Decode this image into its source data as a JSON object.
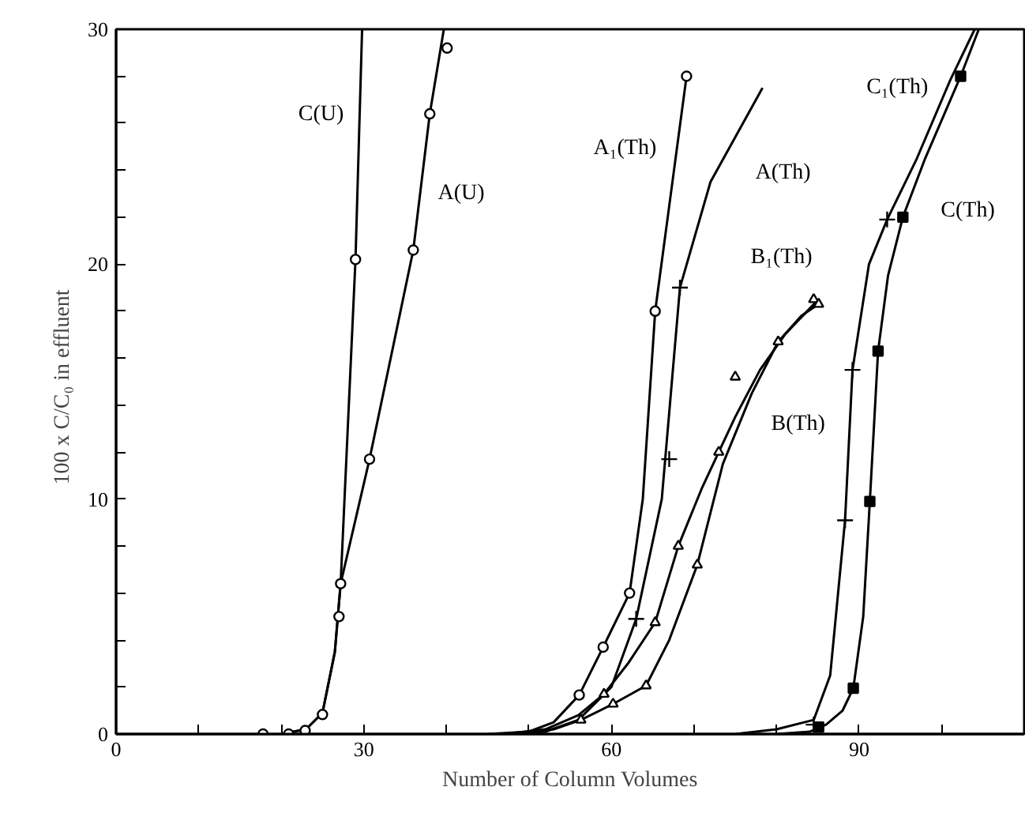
{
  "chart_data": {
    "type": "line",
    "xlabel": "Number of Column Volumes",
    "ylabel": "100 x C/C₀  in  effluent",
    "xlim": [
      0,
      110
    ],
    "ylim": [
      0,
      30
    ],
    "xticks": [
      0,
      {
        "value": 10,
        "label": null
      },
      {
        "value": 20,
        "label": null
      },
      30,
      {
        "value": 40,
        "label": null
      },
      {
        "value": 50,
        "label": null
      },
      60,
      {
        "value": 70,
        "label": null
      },
      {
        "value": 80,
        "label": null
      },
      90,
      {
        "value": 100,
        "label": null
      }
    ],
    "yticks": [
      0,
      {
        "value": 2,
        "label": null
      },
      {
        "value": 4,
        "label": null
      },
      {
        "value": 6,
        "label": null
      },
      {
        "value": 8,
        "label": null
      },
      10,
      {
        "value": 12,
        "label": null
      },
      {
        "value": 14,
        "label": null
      },
      {
        "value": 16,
        "label": null
      },
      {
        "value": 18,
        "label": null
      },
      20,
      {
        "value": 22,
        "label": null
      },
      {
        "value": 24,
        "label": null
      },
      {
        "value": 26,
        "label": null
      },
      {
        "value": 28,
        "label": null
      },
      30
    ],
    "grid": false,
    "series": [
      {
        "name": "C(U)",
        "color": "#000000",
        "x": [
          20,
          23,
          25,
          26.5,
          27.2,
          29.0,
          29.8
        ],
        "values": [
          0,
          0.2,
          0.9,
          3.5,
          6.4,
          20.2,
          30
        ]
      },
      {
        "name": "A(U)",
        "color": "#000000",
        "x": [
          20,
          23,
          25,
          26.5,
          27.2,
          30.7,
          36.0,
          38.0,
          39.7
        ],
        "values": [
          0,
          0.2,
          0.9,
          3.5,
          6.4,
          11.7,
          20.6,
          26.4,
          30
        ]
      },
      {
        "type": "scatter",
        "marker": "circle",
        "color": "#000000",
        "x": [
          17.8,
          20.9,
          22.9,
          25.0,
          27.0,
          27.2,
          30.7,
          36.0,
          38.0,
          40.1
        ],
        "values": [
          0,
          0,
          0.15,
          0.83,
          5.0,
          6.4,
          11.7,
          20.6,
          26.4,
          29.2
        ]
      },
      {
        "type": "scatter",
        "marker": "circle",
        "color": "#000000",
        "x": [
          29.0
        ],
        "values": [
          20.2
        ]
      },
      {
        "name": "A₁(Th)",
        "color": "#000000",
        "x": [
          45,
          50,
          53,
          56.1,
          59,
          62.2,
          63.8,
          65.3,
          67.2,
          69.1
        ],
        "values": [
          0,
          0.1,
          0.5,
          1.66,
          3.7,
          6.0,
          10,
          18.0,
          23,
          28.0
        ]
      },
      {
        "type": "scatter",
        "marker": "circle",
        "color": "#000000",
        "x": [
          56.1,
          59.0,
          62.2,
          65.3,
          69.1
        ],
        "values": [
          1.66,
          3.7,
          6.0,
          18.0,
          28.0
        ]
      },
      {
        "name": "A(Th)",
        "color": "#000000",
        "x": [
          47,
          52,
          56,
          60,
          63.0,
          66.1,
          68.3,
          72,
          78.3
        ],
        "values": [
          0,
          0.1,
          0.6,
          2.0,
          4.9,
          10,
          19,
          23.5,
          27.5
        ]
      },
      {
        "type": "scatter",
        "marker": "cross",
        "color": "#000000",
        "x": [
          63.0,
          67.0,
          68.3
        ],
        "values": [
          4.9,
          11.7,
          19.0
        ]
      },
      {
        "name": "B₁(Th)",
        "color": "#000000",
        "x": [
          47,
          52,
          56,
          59.1,
          62,
          65.3,
          68.1,
          71,
          73.0,
          75.0,
          78,
          81,
          84.8
        ],
        "values": [
          0,
          0.2,
          0.8,
          1.7,
          3,
          4.75,
          8.0,
          10.5,
          12.0,
          13.5,
          15.5,
          17,
          18.4
        ]
      },
      {
        "type": "scatter",
        "marker": "triangle",
        "color": "#000000",
        "x": [
          59.1,
          65.3,
          68.1,
          73.0,
          75.0,
          84.5
        ],
        "values": [
          1.7,
          4.75,
          8.0,
          12.0,
          15.2,
          18.5
        ]
      },
      {
        "name": "B(Th)",
        "color": "#000000",
        "x": [
          48,
          53,
          56.3,
          60.2,
          64.2,
          67,
          70.4,
          73.5,
          77,
          80.2,
          83,
          85.1
        ],
        "values": [
          0,
          0.2,
          0.6,
          1.28,
          2.06,
          4,
          7.2,
          11.5,
          14.5,
          16.7,
          17.8,
          18.3
        ]
      },
      {
        "type": "scatter",
        "marker": "triangle",
        "color": "#000000",
        "x": [
          56.3,
          60.2,
          64.2,
          70.4,
          80.2,
          85.1
        ],
        "values": [
          0.6,
          1.28,
          2.06,
          7.2,
          16.7,
          18.3
        ]
      },
      {
        "name": "C₁(Th)",
        "color": "#000000",
        "x": [
          75,
          80,
          84.5,
          86.5,
          88.3,
          89.2,
          91.2,
          93.4,
          97,
          101,
          104.0
        ],
        "values": [
          0,
          0.2,
          0.6,
          2.5,
          9.1,
          15.5,
          20,
          21.9,
          24.5,
          27.8,
          30
        ]
      },
      {
        "type": "scatter",
        "marker": "cross",
        "color": "#000000",
        "x": [
          84.5,
          88.3,
          89.2,
          93.4
        ],
        "values": [
          0.4,
          9.1,
          15.5,
          21.9
        ]
      },
      {
        "name": "C(Th)",
        "color": "#000000",
        "x": [
          80,
          84,
          86,
          88,
          89.3,
          90.5,
          91.3,
          92.3,
          93.5,
          95.3,
          98,
          102.3,
          104.5
        ],
        "values": [
          0,
          0.1,
          0.4,
          1,
          1.95,
          5,
          9.9,
          16.3,
          19.5,
          22.0,
          24.5,
          28.0,
          30
        ]
      },
      {
        "type": "scatter",
        "marker": "square",
        "color": "#000000",
        "x": [
          85.1,
          89.3,
          91.3,
          92.3,
          95.3,
          102.3
        ],
        "values": [
          0.3,
          1.95,
          9.9,
          16.3,
          22.0,
          28.0
        ]
      }
    ]
  }
}
